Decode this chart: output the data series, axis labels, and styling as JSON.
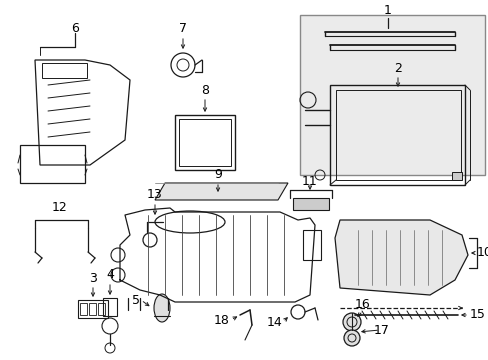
{
  "bg_color": "#ffffff",
  "line_color": "#1a1a1a",
  "fig_width": 4.89,
  "fig_height": 3.6,
  "dpi": 100,
  "components": {
    "label_fontsize": 8.5,
    "label_color": "#000000"
  }
}
